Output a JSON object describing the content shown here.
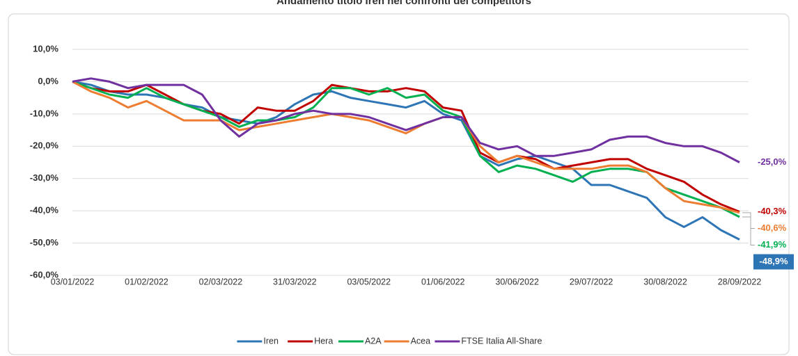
{
  "chart_data": {
    "type": "line",
    "title": "Andamento titolo Iren nei confronti dei competitors",
    "categories": [
      "03/01/2022",
      null,
      null,
      null,
      "01/02/2022",
      null,
      null,
      null,
      "02/03/2022",
      null,
      null,
      null,
      "31/03/2022",
      null,
      null,
      null,
      "03/05/2022",
      null,
      null,
      null,
      "01/06/2022",
      null,
      null,
      null,
      "30/06/2022",
      null,
      null,
      null,
      "29/07/2022",
      null,
      null,
      null,
      "30/08/2022",
      null,
      null,
      null,
      "28/09/2022"
    ],
    "series": [
      {
        "name": "Iren",
        "color": "#2e75b6",
        "values": [
          0,
          -1,
          -3,
          -4,
          -4,
          -5,
          -7,
          -8,
          -11,
          -12,
          -13,
          -11,
          -7,
          -4,
          -3,
          -5,
          -6,
          -7,
          -8,
          -6,
          -10,
          -12,
          -23,
          -26,
          -24,
          -23,
          -25,
          -27,
          -32,
          -32,
          -34,
          -36,
          -42,
          -45,
          -42,
          -46,
          -48.9
        ],
        "value_labels": [
          null,
          null,
          null,
          null,
          null,
          null,
          null,
          null,
          null,
          null,
          null,
          null,
          null,
          null,
          null,
          null,
          null,
          null,
          null,
          null,
          null,
          null,
          null,
          null,
          null,
          null,
          null,
          null,
          null,
          null,
          null,
          null,
          null,
          null,
          null,
          null,
          "-48,9%"
        ]
      },
      {
        "name": "Hera",
        "color": "#c00000",
        "values": [
          0,
          -2,
          -3,
          -3,
          -1,
          -4,
          -7,
          -9,
          -10,
          -13,
          -8,
          -9,
          -9,
          -6,
          -1,
          -2,
          -3,
          -3,
          -2,
          -3,
          -8,
          -9,
          -22,
          -25,
          -23,
          -24,
          -27,
          -26,
          -25,
          -24,
          -24,
          -27,
          -29,
          -31,
          -35,
          -38,
          -40.3
        ],
        "value_labels": [
          null,
          null,
          null,
          null,
          null,
          null,
          null,
          null,
          null,
          null,
          null,
          null,
          null,
          null,
          null,
          null,
          null,
          null,
          null,
          null,
          null,
          null,
          null,
          null,
          null,
          null,
          null,
          null,
          null,
          null,
          null,
          null,
          null,
          null,
          null,
          null,
          "-40,3%"
        ]
      },
      {
        "name": "A2A",
        "color": "#00b050",
        "values": [
          0,
          -2,
          -4,
          -5,
          -2,
          -5,
          -7,
          -9,
          -11,
          -14,
          -12,
          -12,
          -11,
          -8,
          -2,
          -2,
          -4,
          -2,
          -5,
          -4,
          -9,
          -11,
          -23,
          -28,
          -26,
          -27,
          -29,
          -31,
          -28,
          -27,
          -27,
          -28,
          -33,
          -35,
          -37,
          -39,
          -41.9
        ],
        "value_labels": [
          null,
          null,
          null,
          null,
          null,
          null,
          null,
          null,
          null,
          null,
          null,
          null,
          null,
          null,
          null,
          null,
          null,
          null,
          null,
          null,
          null,
          null,
          null,
          null,
          null,
          null,
          null,
          null,
          null,
          null,
          null,
          null,
          null,
          null,
          null,
          null,
          "-41,9%"
        ]
      },
      {
        "name": "Acea",
        "color": "#ed7d31",
        "values": [
          0,
          -3,
          -5,
          -8,
          -6,
          -9,
          -12,
          -12,
          -12,
          -15,
          -14,
          -13,
          -12,
          -11,
          -10,
          -11,
          -12,
          -14,
          -16,
          -13,
          -11,
          -11,
          -20,
          -25,
          -23,
          -25,
          -27,
          -27,
          -27,
          -26,
          -26,
          -28,
          -33,
          -37,
          -38,
          -39,
          -40.6
        ],
        "value_labels": [
          null,
          null,
          null,
          null,
          null,
          null,
          null,
          null,
          null,
          null,
          null,
          null,
          null,
          null,
          null,
          null,
          null,
          null,
          null,
          null,
          null,
          null,
          null,
          null,
          null,
          null,
          null,
          null,
          null,
          null,
          null,
          null,
          null,
          null,
          null,
          null,
          "-40,6%"
        ]
      },
      {
        "name": "FTSE Italia All-Share",
        "color": "#7030a0",
        "values": [
          0,
          1,
          0,
          -2,
          -1,
          -1,
          -1,
          -4,
          -12,
          -17,
          -13,
          -12,
          -10,
          -9,
          -10,
          -10,
          -11,
          -13,
          -15,
          -13,
          -11,
          -11,
          -19,
          -21,
          -20,
          -23,
          -23,
          -22,
          -21,
          -18,
          -17,
          -17,
          -19,
          -20,
          -20,
          -22,
          -25.0
        ],
        "value_labels": [
          null,
          null,
          null,
          null,
          null,
          null,
          null,
          null,
          null,
          null,
          null,
          null,
          null,
          null,
          null,
          null,
          null,
          null,
          null,
          null,
          null,
          null,
          null,
          null,
          null,
          null,
          null,
          null,
          null,
          null,
          null,
          null,
          null,
          null,
          null,
          null,
          "-25,0%"
        ]
      }
    ],
    "ylim": [
      -60,
      10
    ],
    "yticks": [
      {
        "value": -60,
        "label": "-60,0%"
      },
      {
        "value": -50,
        "label": "-50,0%"
      },
      {
        "value": -40,
        "label": "-40,0%"
      },
      {
        "value": -30,
        "label": "-30,0%"
      },
      {
        "value": -20,
        "label": "-20,0%"
      },
      {
        "value": -10,
        "label": "-10,0%"
      },
      {
        "value": 0,
        "label": "0,0%"
      },
      {
        "value": 10,
        "label": "10,0%"
      }
    ],
    "grid": true,
    "legend": "bottom"
  }
}
